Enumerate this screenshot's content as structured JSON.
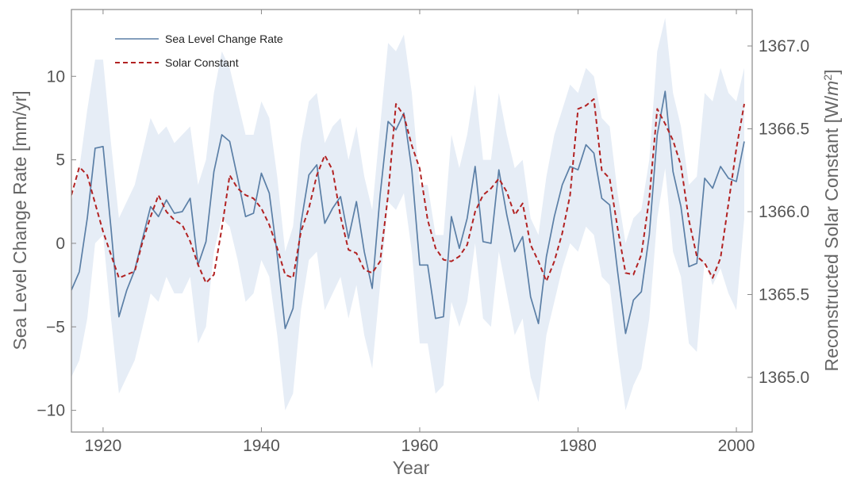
{
  "chart_data": {
    "type": "line",
    "xlabel": "Year",
    "ylabel_left": "Sea Level Change Rate [mm/yr]",
    "ylabel_right_parts": [
      "Reconstructed Solar Constant [W/",
      "m",
      "2",
      "]"
    ],
    "xlim": [
      1916,
      2002
    ],
    "ylim_left": [
      -11.3,
      14
    ],
    "ylim_right": [
      1364.67,
      1367.22
    ],
    "x_ticks": [
      1920,
      1940,
      1960,
      1980,
      2000
    ],
    "y_ticks_left": [
      -10,
      -5,
      0,
      5,
      10
    ],
    "y_ticks_left_labels": [
      "−10",
      "−5",
      "0",
      "5",
      "10"
    ],
    "y_ticks_right": [
      1365.0,
      1365.5,
      1366.0,
      1366.5,
      1367.0
    ],
    "y_ticks_right_labels": [
      "1365.0",
      "1365.5",
      "1366.0",
      "1366.5",
      "1367.0"
    ],
    "grid": false,
    "legend_position": "top-left",
    "colors": {
      "sea_level": "#5b7fa6",
      "solar": "#b22222",
      "band": "#e6edf6",
      "frame": "#888888"
    },
    "series": [
      {
        "name": "Sea Level Change Rate",
        "axis": "left",
        "style": "solid",
        "x": [
          1916,
          1917,
          1918,
          1919,
          1920,
          1921,
          1922,
          1923,
          1924,
          1925,
          1926,
          1927,
          1928,
          1929,
          1930,
          1931,
          1932,
          1933,
          1934,
          1935,
          1936,
          1937,
          1938,
          1939,
          1940,
          1941,
          1942,
          1943,
          1944,
          1945,
          1946,
          1947,
          1948,
          1949,
          1950,
          1951,
          1952,
          1953,
          1954,
          1955,
          1956,
          1957,
          1958,
          1959,
          1960,
          1961,
          1962,
          1963,
          1964,
          1965,
          1966,
          1967,
          1968,
          1969,
          1970,
          1971,
          1972,
          1973,
          1974,
          1975,
          1976,
          1977,
          1978,
          1979,
          1980,
          1981,
          1982,
          1983,
          1984,
          1985,
          1986,
          1987,
          1988,
          1989,
          1990,
          1991,
          1992,
          1993,
          1994,
          1995,
          1996,
          1997,
          1998,
          1999,
          2000,
          2001
        ],
        "y": [
          -2.8,
          -1.7,
          1.5,
          5.7,
          5.8,
          0.9,
          -4.4,
          -2.8,
          -1.6,
          0.3,
          2.2,
          1.6,
          2.6,
          1.8,
          1.9,
          2.7,
          -1.3,
          0.1,
          4.3,
          6.5,
          6.1,
          3.9,
          1.6,
          1.8,
          4.2,
          3.0,
          -0.7,
          -5.1,
          -3.9,
          1.2,
          4.1,
          4.7,
          1.2,
          2.1,
          2.8,
          0.3,
          2.5,
          -0.5,
          -2.7,
          2.9,
          7.3,
          6.8,
          7.8,
          4.4,
          -1.3,
          -1.3,
          -4.5,
          -4.4,
          1.6,
          -0.3,
          1.5,
          4.6,
          0.1,
          0.0,
          4.4,
          1.7,
          -0.5,
          0.4,
          -3.2,
          -4.8,
          -0.8,
          1.6,
          3.5,
          4.6,
          4.4,
          5.9,
          5.4,
          2.7,
          2.3,
          -1.7,
          -5.4,
          -3.4,
          -2.9,
          0.5,
          6.5,
          9.1,
          4.3,
          2.2,
          -1.4,
          -1.2,
          3.9,
          3.3,
          4.6,
          3.9,
          3.7,
          6.1
        ]
      },
      {
        "name": "Solar Constant",
        "axis": "right",
        "style": "dashed",
        "x": [
          1916,
          1917,
          1918,
          1919,
          1920,
          1921,
          1922,
          1923,
          1924,
          1925,
          1926,
          1927,
          1928,
          1929,
          1930,
          1931,
          1932,
          1933,
          1934,
          1935,
          1936,
          1937,
          1938,
          1939,
          1940,
          1941,
          1942,
          1943,
          1944,
          1945,
          1946,
          1947,
          1948,
          1949,
          1950,
          1951,
          1952,
          1953,
          1954,
          1955,
          1956,
          1957,
          1958,
          1959,
          1960,
          1961,
          1962,
          1963,
          1964,
          1965,
          1966,
          1967,
          1968,
          1969,
          1970,
          1971,
          1972,
          1973,
          1974,
          1975,
          1976,
          1977,
          1978,
          1979,
          1980,
          1981,
          1982,
          1983,
          1984,
          1985,
          1986,
          1987,
          1988,
          1989,
          1990,
          1991,
          1992,
          1993,
          1994,
          1995,
          1996,
          1997,
          1998,
          1999,
          2000,
          2001
        ],
        "y": [
          1366.1,
          1366.27,
          1366.22,
          1366.05,
          1365.88,
          1365.74,
          1365.6,
          1365.62,
          1365.64,
          1365.82,
          1365.97,
          1366.1,
          1366.0,
          1365.95,
          1365.92,
          1365.82,
          1365.68,
          1365.57,
          1365.62,
          1365.9,
          1366.22,
          1366.14,
          1366.1,
          1366.08,
          1366.02,
          1365.92,
          1365.78,
          1365.62,
          1365.6,
          1365.88,
          1366.02,
          1366.22,
          1366.34,
          1366.25,
          1365.97,
          1365.77,
          1365.75,
          1365.65,
          1365.63,
          1365.7,
          1366.1,
          1366.65,
          1366.58,
          1366.4,
          1366.26,
          1365.95,
          1365.78,
          1365.71,
          1365.7,
          1365.73,
          1365.8,
          1366.0,
          1366.1,
          1366.14,
          1366.2,
          1366.12,
          1365.98,
          1366.05,
          1365.8,
          1365.7,
          1365.58,
          1365.7,
          1365.87,
          1366.1,
          1366.62,
          1366.64,
          1366.68,
          1366.25,
          1366.2,
          1365.9,
          1365.63,
          1365.62,
          1365.74,
          1366.08,
          1366.62,
          1366.53,
          1366.43,
          1366.28,
          1365.95,
          1365.73,
          1365.69,
          1365.6,
          1365.72,
          1366.05,
          1366.38,
          1366.65
        ]
      }
    ],
    "uncertainty_band": {
      "series": "Sea Level Change Rate",
      "x": [
        1916,
        1917,
        1918,
        1919,
        1920,
        1921,
        1922,
        1923,
        1924,
        1925,
        1926,
        1927,
        1928,
        1929,
        1930,
        1931,
        1932,
        1933,
        1934,
        1935,
        1936,
        1937,
        1938,
        1939,
        1940,
        1941,
        1942,
        1943,
        1944,
        1945,
        1946,
        1947,
        1948,
        1949,
        1950,
        1951,
        1952,
        1953,
        1954,
        1955,
        1956,
        1957,
        1958,
        1959,
        1960,
        1961,
        1962,
        1963,
        1964,
        1965,
        1966,
        1967,
        1968,
        1969,
        1970,
        1971,
        1972,
        1973,
        1974,
        1975,
        1976,
        1977,
        1978,
        1979,
        1980,
        1981,
        1982,
        1983,
        1984,
        1985,
        1986,
        1987,
        1988,
        1989,
        1990,
        1991,
        1992,
        1993,
        1994,
        1995,
        1996,
        1997,
        1998,
        1999,
        2000,
        2001
      ],
      "upper": [
        2.5,
        4.5,
        8.0,
        11.0,
        11.0,
        6.0,
        1.5,
        2.5,
        3.5,
        5.5,
        7.5,
        6.5,
        7.0,
        6.0,
        6.5,
        7.0,
        3.5,
        5.0,
        9.0,
        11.5,
        10.5,
        8.5,
        6.5,
        6.5,
        8.5,
        7.5,
        4.0,
        -0.5,
        1.0,
        6.0,
        8.5,
        9.0,
        6.0,
        7.0,
        7.5,
        5.0,
        7.0,
        4.0,
        2.0,
        7.0,
        12.0,
        11.5,
        12.5,
        9.0,
        3.5,
        3.5,
        0.5,
        0.5,
        6.5,
        4.5,
        6.5,
        9.5,
        5.0,
        5.0,
        9.0,
        6.5,
        4.5,
        5.0,
        1.5,
        0.5,
        4.0,
        6.5,
        8.0,
        9.5,
        9.0,
        10.5,
        10.0,
        7.5,
        7.0,
        3.0,
        0.0,
        1.5,
        2.0,
        5.0,
        11.5,
        13.5,
        9.0,
        7.0,
        3.5,
        4.0,
        9.0,
        8.5,
        10.5,
        9.0,
        8.5,
        10.5
      ],
      "lower": [
        -8.0,
        -7.0,
        -4.5,
        0.0,
        0.5,
        -4.5,
        -9.0,
        -8.0,
        -7.0,
        -5.0,
        -3.0,
        -3.5,
        -2.0,
        -3.0,
        -3.0,
        -2.0,
        -6.0,
        -5.0,
        -0.5,
        1.5,
        1.0,
        -1.0,
        -3.5,
        -3.0,
        -1.0,
        -2.0,
        -5.5,
        -10.0,
        -9.0,
        -4.0,
        -1.0,
        -0.5,
        -4.0,
        -3.0,
        -2.0,
        -4.5,
        -2.5,
        -5.5,
        -7.5,
        -2.5,
        2.5,
        2.0,
        3.0,
        -0.5,
        -6.0,
        -6.0,
        -9.0,
        -8.5,
        -3.5,
        -5.0,
        -3.5,
        0.0,
        -4.5,
        -5.0,
        -0.5,
        -3.0,
        -5.5,
        -4.5,
        -8.0,
        -9.5,
        -5.5,
        -3.5,
        -1.5,
        0.0,
        -0.5,
        1.0,
        0.5,
        -2.0,
        -2.5,
        -6.5,
        -10.0,
        -8.5,
        -7.5,
        -4.5,
        1.5,
        4.5,
        -0.5,
        -2.0,
        -6.0,
        -6.5,
        -1.0,
        -2.5,
        -1.5,
        -3.0,
        -4.0,
        1.5
      ]
    }
  }
}
